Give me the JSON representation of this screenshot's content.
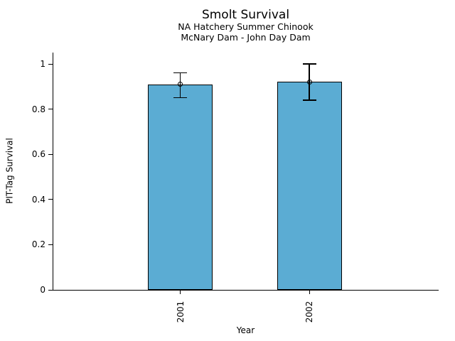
{
  "chart_data": {
    "type": "bar",
    "title": "Smolt Survival",
    "subtitle1": "NA Hatchery Summer Chinook",
    "subtitle2": "McNary Dam - John Day Dam",
    "xlabel": "Year",
    "ylabel": "PIT-Tag Survival",
    "categories": [
      "2001",
      "2002"
    ],
    "values": [
      0.91,
      0.92
    ],
    "error_low": [
      0.85,
      0.84
    ],
    "error_high": [
      0.96,
      1.0
    ],
    "yticks": [
      0,
      0.2,
      0.4,
      0.6,
      0.8,
      1
    ],
    "ytick_labels": [
      "0",
      "0.2",
      "0.4",
      "0.6",
      "0.8",
      "1"
    ],
    "ylim": [
      0,
      1.05
    ],
    "grid": false,
    "legend": "none",
    "bar_color": "#5BACD3",
    "bar_edge_color": "#000000",
    "axis_color": "#000000"
  }
}
